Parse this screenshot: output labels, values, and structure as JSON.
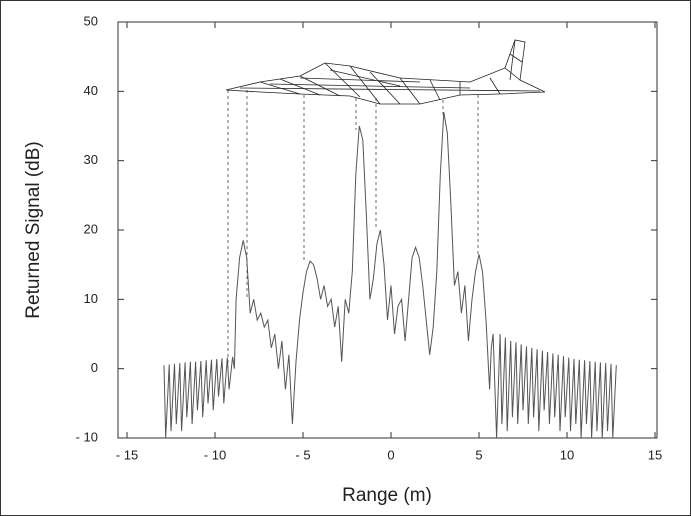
{
  "chart_data": {
    "type": "line",
    "xlabel": "Range (m)",
    "ylabel": "Returned Signal (dB)",
    "xlim": [
      -15,
      15
    ],
    "xticks": [
      {
        "value": -15,
        "label": "- 15"
      },
      {
        "value": -10,
        "label": "- 10"
      },
      {
        "value": -5,
        "label": "- 5"
      },
      0,
      5,
      10,
      15
    ],
    "ylim": [
      -10,
      50
    ],
    "yticks": [
      {
        "value": -10,
        "label": "- 10"
      },
      0,
      10,
      20,
      30,
      40,
      50
    ],
    "color": "#555555",
    "x": [
      -12.9,
      -12.8,
      -12.6,
      -12.5,
      -12.3,
      -12.2,
      -12.0,
      -11.9,
      -11.7,
      -11.6,
      -11.4,
      -11.3,
      -11.1,
      -11.0,
      -10.8,
      -10.7,
      -10.5,
      -10.4,
      -10.2,
      -10.1,
      -9.9,
      -9.8,
      -9.6,
      -9.5,
      -9.3,
      -9.2,
      -9.0,
      -8.9,
      -8.8,
      -8.6,
      -8.4,
      -8.2,
      -8.0,
      -7.8,
      -7.6,
      -7.4,
      -7.2,
      -7.0,
      -6.8,
      -6.6,
      -6.4,
      -6.2,
      -6.0,
      -5.8,
      -5.6,
      -5.4,
      -5.2,
      -5.0,
      -4.8,
      -4.6,
      -4.4,
      -4.2,
      -4.0,
      -3.8,
      -3.6,
      -3.4,
      -3.2,
      -3.0,
      -2.8,
      -2.6,
      -2.4,
      -2.3,
      -2.2,
      -2.0,
      -1.8,
      -1.6,
      -1.4,
      -1.2,
      -1.0,
      -0.8,
      -0.6,
      -0.4,
      -0.2,
      0,
      0.2,
      0.4,
      0.6,
      0.8,
      1.0,
      1.2,
      1.4,
      1.6,
      1.8,
      2.0,
      2.2,
      2.4,
      2.6,
      2.8,
      3.0,
      3.2,
      3.4,
      3.6,
      3.8,
      4.0,
      4.2,
      4.4,
      4.6,
      4.8,
      5.0,
      5.2,
      5.4,
      5.6,
      5.7,
      5.8,
      6.0,
      6.2,
      6.3,
      6.5,
      6.6,
      6.8,
      6.9,
      7.1,
      7.2,
      7.4,
      7.5,
      7.7,
      7.8,
      8.0,
      8.1,
      8.3,
      8.4,
      8.6,
      8.7,
      8.9,
      9.0,
      9.2,
      9.3,
      9.5,
      9.6,
      9.8,
      9.9,
      10.1,
      10.2,
      10.4,
      10.5,
      10.7,
      10.8,
      11.0,
      11.1,
      11.3,
      11.4,
      11.6,
      11.7,
      11.9,
      12.0,
      12.2,
      12.3,
      12.5,
      12.6,
      12.8
    ],
    "values": [
      0.5,
      -10,
      0.6,
      -9,
      0.7,
      -8,
      0.8,
      -9,
      0.9,
      -7,
      1,
      -8,
      1,
      -6,
      1.1,
      -7,
      1.2,
      -5,
      1.3,
      -6,
      1.4,
      -4,
      1.5,
      -5,
      1.6,
      -3,
      1.7,
      0,
      10,
      16,
      18.5,
      16,
      8,
      10,
      7,
      8,
      6,
      7,
      3,
      5,
      0,
      4,
      -3,
      2,
      -8,
      1,
      7,
      11,
      14,
      15.5,
      15,
      13,
      10,
      12,
      9,
      10,
      6,
      9,
      1,
      10,
      8,
      11,
      14,
      28,
      35,
      33,
      22,
      10,
      13,
      18,
      20,
      15,
      7,
      12,
      5,
      9,
      10,
      4,
      10,
      16,
      17.5,
      16,
      12,
      7,
      2,
      6,
      14,
      28,
      37,
      34,
      24,
      12,
      14,
      8,
      12,
      4,
      10,
      14,
      16.5,
      14,
      7,
      -3,
      3,
      5,
      -10,
      5,
      -8,
      4.5,
      -9,
      4,
      -7,
      3.8,
      -8,
      3.5,
      -6,
      3.2,
      -8,
      3,
      -7,
      2.8,
      -9,
      2.6,
      -6,
      2.4,
      -8,
      2.2,
      -7,
      2,
      -9,
      1.8,
      -7,
      1.6,
      -9,
      1.4,
      -8,
      1.3,
      -10,
      1.2,
      -8,
      1.1,
      -10,
      1,
      -9,
      0.9,
      -10,
      0.8,
      -9,
      0.7,
      -10,
      0.5
    ]
  }
}
